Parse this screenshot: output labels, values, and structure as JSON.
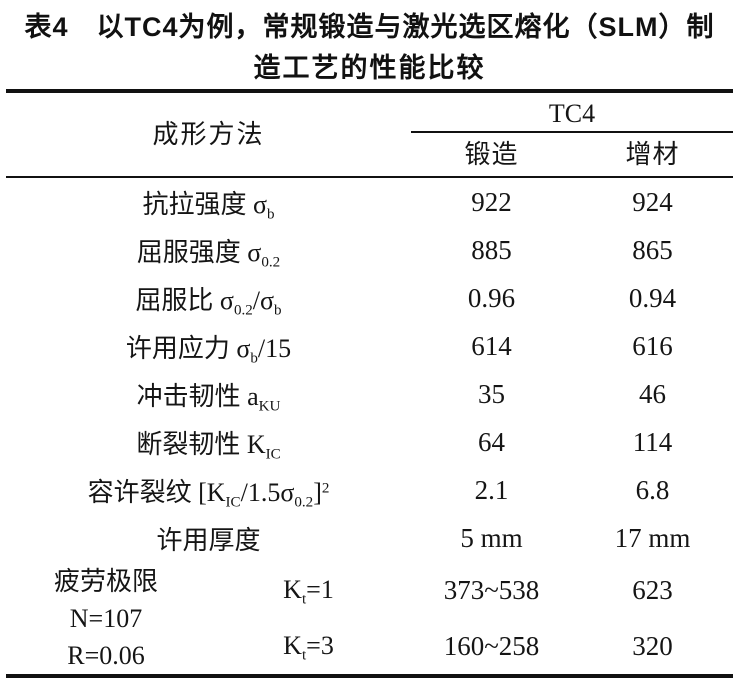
{
  "title": {
    "line1": "表4　以TC4为例，常规锻造与激光选区熔化（SLM）制",
    "line2": "造工艺的性能比较"
  },
  "table": {
    "header": {
      "method_label": "成形方法",
      "group_label": "TC4",
      "col1": "锻造",
      "col2": "增材"
    },
    "rows": [
      {
        "label_parts": [
          [
            "t",
            "抗拉强度 σ"
          ],
          [
            "sub",
            "b"
          ]
        ],
        "forge": "922",
        "additive": "924"
      },
      {
        "label_parts": [
          [
            "t",
            "屈服强度 σ"
          ],
          [
            "sub",
            "0.2"
          ]
        ],
        "forge": "885",
        "additive": "865"
      },
      {
        "label_parts": [
          [
            "t",
            "屈服比 σ"
          ],
          [
            "sub",
            "0.2"
          ],
          [
            "t",
            "/σ"
          ],
          [
            "sub",
            "b"
          ]
        ],
        "forge": "0.96",
        "additive": "0.94"
      },
      {
        "label_parts": [
          [
            "t",
            "许用应力 σ"
          ],
          [
            "sub",
            "b"
          ],
          [
            "t",
            "/15"
          ]
        ],
        "forge": "614",
        "additive": "616"
      },
      {
        "label_parts": [
          [
            "t",
            "冲击韧性 a"
          ],
          [
            "sub",
            "KU"
          ]
        ],
        "forge": "35",
        "additive": "46"
      },
      {
        "label_parts": [
          [
            "t",
            "断裂韧性 K"
          ],
          [
            "sub",
            "IC"
          ]
        ],
        "forge": "64",
        "additive": "114"
      },
      {
        "label_parts": [
          [
            "t",
            "容许裂纹 [K"
          ],
          [
            "sub",
            "IC"
          ],
          [
            "t",
            "/1.5σ"
          ],
          [
            "sub",
            "0.2"
          ],
          [
            "t",
            "]"
          ],
          [
            "sup",
            "2"
          ]
        ],
        "forge": "2.1",
        "additive": "6.8"
      },
      {
        "label_parts": [
          [
            "t",
            "许用厚度"
          ]
        ],
        "forge": "5 mm",
        "additive": "17 mm"
      }
    ],
    "fatigue": {
      "label_lines": [
        "疲劳极限",
        "N=107",
        "R=0.06"
      ],
      "sub_rows": [
        {
          "kt_parts": [
            [
              "t",
              "K"
            ],
            [
              "sub",
              "t"
            ],
            [
              "t",
              "=1"
            ]
          ],
          "forge": "373~538",
          "additive": "623"
        },
        {
          "kt_parts": [
            [
              "t",
              "K"
            ],
            [
              "sub",
              "t"
            ],
            [
              "t",
              "=3"
            ]
          ],
          "forge": "160~258",
          "additive": "320"
        }
      ]
    }
  },
  "colors": {
    "text": "#151515",
    "rule": "#111111",
    "background": "#ffffff"
  }
}
